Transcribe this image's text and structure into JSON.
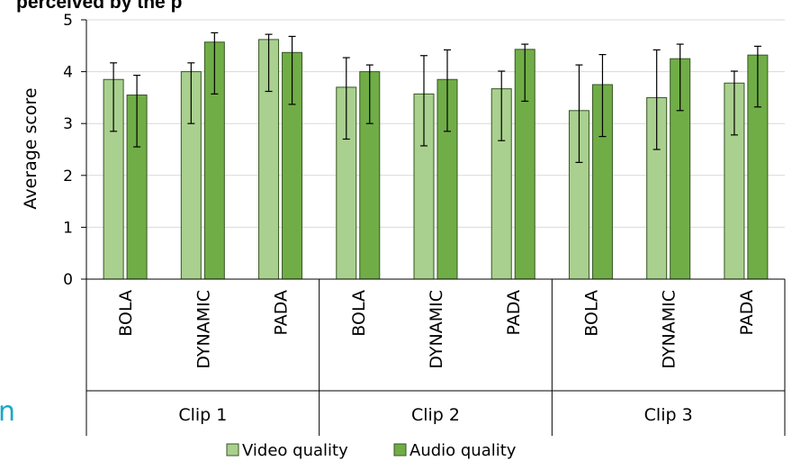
{
  "title_fragment": "perceived by the p",
  "side_fragment": "n",
  "chart_data": {
    "type": "bar",
    "ylabel": "Average score",
    "ylim": [
      0,
      5
    ],
    "yticks": [
      0,
      1,
      2,
      3,
      4,
      5
    ],
    "groups": [
      "Clip 1",
      "Clip 2",
      "Clip 3"
    ],
    "categories": [
      "BOLA",
      "DYNAMIC",
      "PADA",
      "BOLA",
      "DYNAMIC",
      "PADA",
      "BOLA",
      "DYNAMIC",
      "PADA"
    ],
    "series": [
      {
        "name": "Video quality",
        "color": "#a9d08e",
        "values": [
          3.85,
          4.0,
          4.62,
          3.7,
          3.57,
          3.67,
          3.25,
          3.5,
          3.78
        ],
        "err_low": [
          2.85,
          3.0,
          3.62,
          2.7,
          2.57,
          2.67,
          2.25,
          2.5,
          2.78
        ],
        "err_high": [
          4.17,
          4.17,
          4.72,
          4.27,
          4.31,
          4.01,
          4.13,
          4.42,
          4.01
        ]
      },
      {
        "name": "Audio quality",
        "color": "#70ad47",
        "values": [
          3.55,
          4.57,
          4.37,
          4.0,
          3.85,
          4.43,
          3.75,
          4.25,
          4.32
        ],
        "err_low": [
          2.55,
          3.57,
          3.37,
          3.0,
          2.85,
          3.43,
          2.75,
          3.25,
          3.32
        ],
        "err_high": [
          3.93,
          4.75,
          4.68,
          4.13,
          4.42,
          4.53,
          4.33,
          4.53,
          4.49
        ]
      }
    ],
    "legend_position": "bottom",
    "grid": true
  }
}
